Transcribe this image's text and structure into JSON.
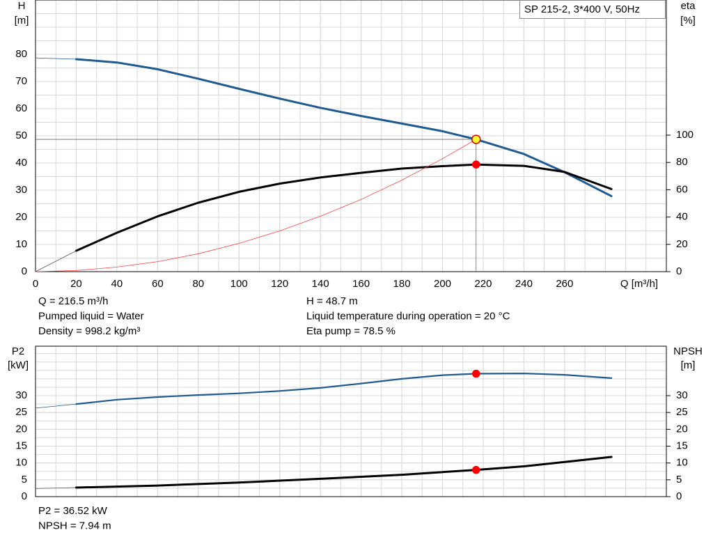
{
  "chart_data": [
    {
      "type": "line",
      "legend_text": "SP 215-2, 3*400 V, 50Hz",
      "y_label": "H",
      "y_unit": "[m]",
      "y2_label": "eta",
      "y2_unit": "[%]",
      "x_label": "Q [m³/h]",
      "xlim": [
        0,
        310
      ],
      "xticks": [
        0,
        20,
        40,
        60,
        80,
        100,
        120,
        140,
        160,
        180,
        200,
        220,
        240,
        260
      ],
      "ylim": [
        0,
        100
      ],
      "yticks": [
        0,
        10,
        20,
        30,
        40,
        50,
        60,
        70,
        80
      ],
      "y2lim": [
        0,
        199
      ],
      "y2ticks": [
        0,
        20,
        40,
        60,
        80,
        100
      ],
      "grid": true,
      "series": [
        {
          "color": "#1f5a91",
          "line_style": "thin",
          "x": [
            0,
            20
          ],
          "values": [
            78.7,
            78.2
          ]
        },
        {
          "color": "#1f5a91",
          "line_style": "thick",
          "x": [
            20,
            40,
            60,
            80,
            100,
            120,
            140,
            160,
            180,
            200,
            216.5,
            240,
            260,
            283
          ],
          "values": [
            78.2,
            77,
            74.5,
            71,
            67.3,
            63.7,
            60.3,
            57.3,
            54.5,
            51.7,
            48.7,
            43.3,
            36.6,
            27.8
          ]
        },
        {
          "color": "#555555",
          "line_style": "thin",
          "axis": "y2",
          "x": [
            0,
            20
          ],
          "values": [
            0,
            15.3
          ]
        },
        {
          "color": "#000000",
          "line_style": "thick",
          "axis": "y2",
          "x": [
            20,
            40,
            60,
            80,
            100,
            120,
            140,
            160,
            180,
            200,
            216.5,
            240,
            260,
            283
          ],
          "values": [
            15.3,
            28.5,
            40.5,
            50.5,
            58.5,
            64.5,
            69,
            72.4,
            75.5,
            77.3,
            78.5,
            77.5,
            73,
            60.5
          ]
        },
        {
          "color": "#ff4040",
          "line_style": "thin",
          "x": [
            0,
            20,
            40,
            60,
            80,
            100,
            120,
            140,
            160,
            180,
            200,
            216.5
          ],
          "values": [
            0,
            0.4,
            1.7,
            3.7,
            6.6,
            10.4,
            15,
            20.4,
            26.6,
            33.7,
            41.6,
            48.7
          ]
        }
      ],
      "points": [
        {
          "x": 216.5,
          "value": 48.7,
          "fill": "#ffff33",
          "stroke": "#e00000"
        },
        {
          "x": 216.5,
          "value": 78.5,
          "axis": "y2",
          "fill": "#ff0000",
          "stroke": "#ff0000"
        }
      ],
      "info": [
        "Q = 216.5 m³/h",
        "Pumped liquid = Water",
        "Density = 998.2 kg/m³",
        "H = 48.7 m",
        "Liquid temperature during operation = 20 °C",
        "Eta pump = 78.5 %"
      ]
    },
    {
      "type": "line",
      "y_label": "P2",
      "y_unit": "[kW]",
      "y2_label": "NPSH",
      "y2_unit": "[m]",
      "xlim": [
        0,
        310
      ],
      "ylim": [
        0,
        44.7
      ],
      "yticks": [
        0,
        5,
        10,
        15,
        20,
        25,
        30
      ],
      "y2lim": [
        0,
        44.7
      ],
      "y2ticks": [
        0,
        5,
        10,
        15,
        20,
        25,
        30
      ],
      "grid": true,
      "series": [
        {
          "color": "#1f5a91",
          "line_style": "thin",
          "x": [
            0,
            20
          ],
          "values": [
            26.3,
            27.5
          ]
        },
        {
          "color": "#1f5a91",
          "line_style": "medium",
          "x": [
            20,
            40,
            60,
            80,
            100,
            120,
            140,
            160,
            180,
            200,
            216.5,
            240,
            260,
            283
          ],
          "values": [
            27.5,
            28.8,
            29.6,
            30.2,
            30.7,
            31.4,
            32.3,
            33.6,
            35,
            36.1,
            36.52,
            36.6,
            36.2,
            35.2
          ]
        },
        {
          "color": "#555555",
          "line_style": "thin",
          "axis": "y2",
          "x": [
            0,
            20
          ],
          "values": [
            2.4,
            2.7
          ]
        },
        {
          "color": "#000000",
          "line_style": "thick",
          "axis": "y2",
          "x": [
            20,
            60,
            100,
            140,
            180,
            216.5,
            240,
            260,
            283
          ],
          "values": [
            2.7,
            3.3,
            4.2,
            5.3,
            6.5,
            7.94,
            9,
            10.3,
            11.8
          ]
        }
      ],
      "points": [
        {
          "x": 216.5,
          "value": 36.52,
          "fill": "#ff0000",
          "stroke": "#ff0000"
        },
        {
          "x": 216.5,
          "value": 7.94,
          "axis": "y2",
          "fill": "#ff0000",
          "stroke": "#ff0000"
        }
      ],
      "info": [
        "P2 = 36.52 kW",
        "NPSH = 7.94 m"
      ]
    }
  ]
}
